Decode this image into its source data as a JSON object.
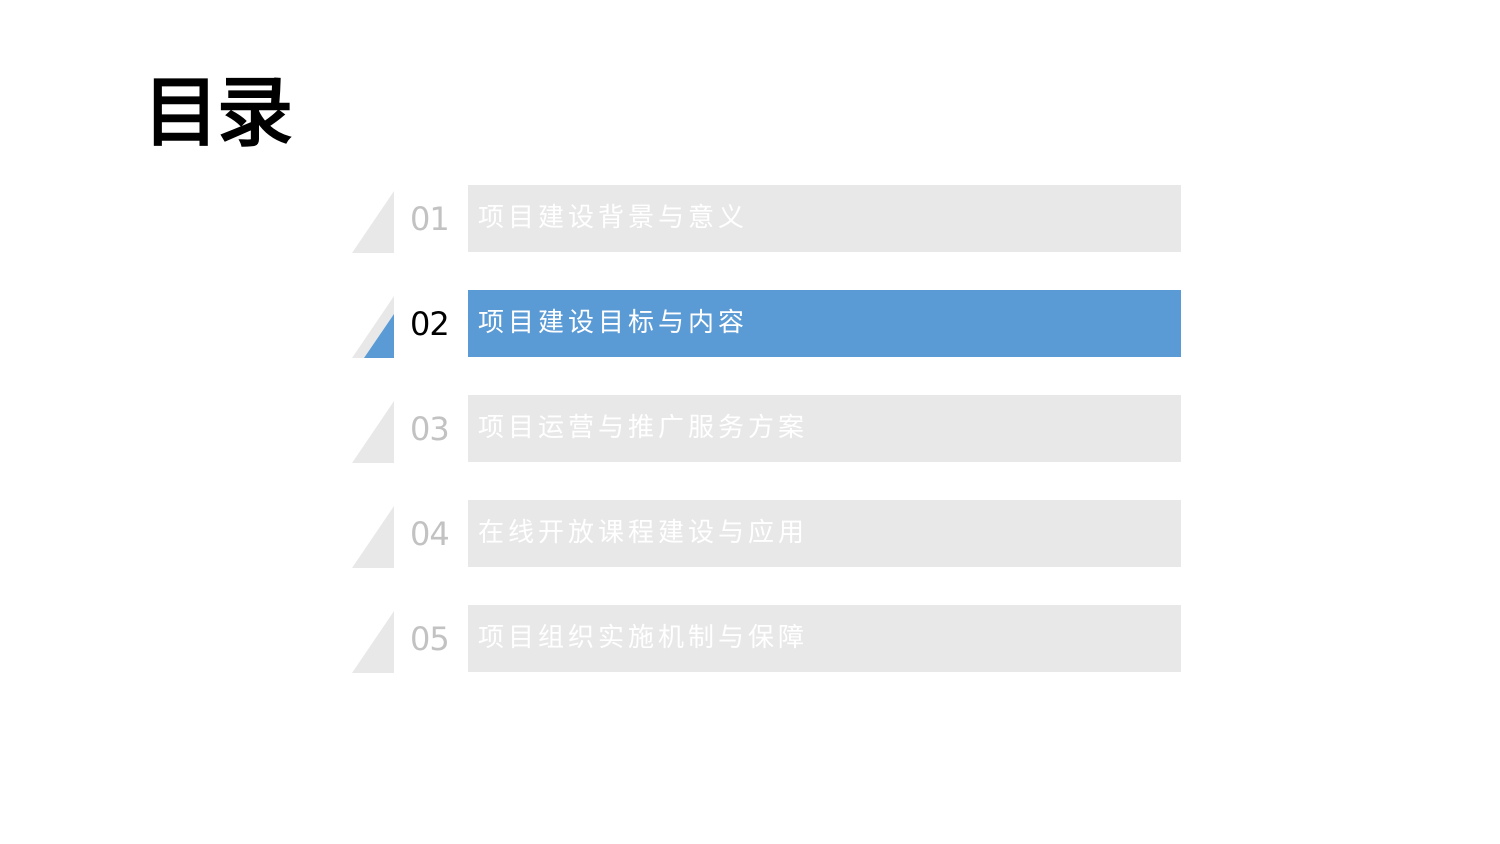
{
  "title": "目录",
  "colors": {
    "inactive_bar": "#e8e8e8",
    "active_bar": "#5b9bd5",
    "inactive_number": "#c2c2c2",
    "active_number": "#000000",
    "label_text": "#ffffff"
  },
  "items": [
    {
      "number": "01",
      "label": "项目建设背景与意义",
      "active": false
    },
    {
      "number": "02",
      "label": "项目建设目标与内容",
      "active": true
    },
    {
      "number": "03",
      "label": "项目运营与推广服务方案",
      "active": false
    },
    {
      "number": "04",
      "label": "在线开放课程建设与应用",
      "active": false
    },
    {
      "number": "05",
      "label": "项目组织实施机制与保障",
      "active": false
    }
  ]
}
